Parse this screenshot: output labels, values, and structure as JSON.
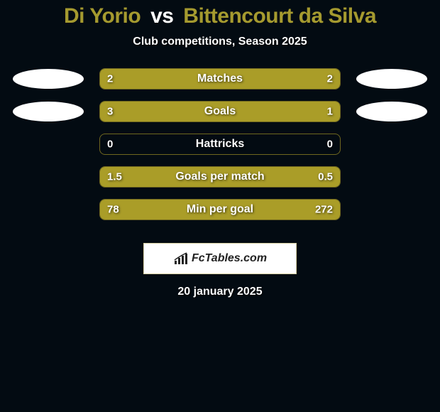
{
  "title": {
    "player1": "Di Yorio",
    "vs": "vs",
    "player2": "Bittencourt da Silva",
    "player1_color": "#a59a2f",
    "player2_color": "#a59a2f"
  },
  "subtitle": "Club competitions, Season 2025",
  "bars": [
    {
      "label": "Matches",
      "left_val": "2",
      "right_val": "2",
      "left_pct": 50,
      "right_pct": 50,
      "show_ovals": true
    },
    {
      "label": "Goals",
      "left_val": "3",
      "right_val": "1",
      "left_pct": 75,
      "right_pct": 25,
      "show_ovals": true
    },
    {
      "label": "Hattricks",
      "left_val": "0",
      "right_val": "0",
      "left_pct": 0,
      "right_pct": 0,
      "show_ovals": false
    },
    {
      "label": "Goals per match",
      "left_val": "1.5",
      "right_val": "0.5",
      "left_pct": 75,
      "right_pct": 25,
      "show_ovals": false
    },
    {
      "label": "Min per goal",
      "left_val": "78",
      "right_val": "272",
      "left_pct": 22,
      "right_pct": 78,
      "show_ovals": false
    }
  ],
  "bar_style": {
    "fill_color": "#aa9d28",
    "border_color": "#6f671f",
    "text_color": "#ffffff"
  },
  "footer": {
    "brand": "FcTables.com"
  },
  "date": "20 january 2025",
  "colors": {
    "background": "#030b12",
    "oval": "#ffffff"
  }
}
